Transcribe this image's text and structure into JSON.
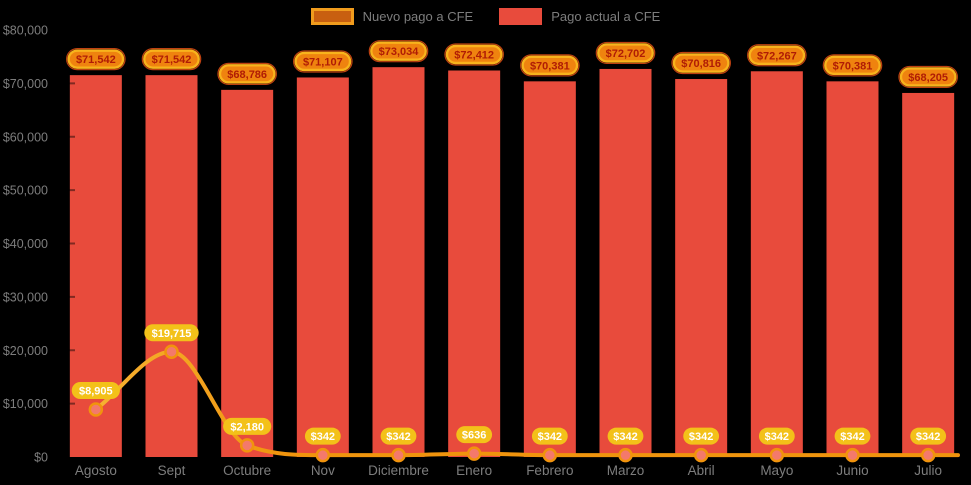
{
  "legend": {
    "items": [
      {
        "label": "Nuevo pago a CFE"
      },
      {
        "label": "Pago actual a CFE"
      }
    ]
  },
  "chart_data": {
    "type": "bar",
    "title": "",
    "xlabel": "",
    "ylabel": "",
    "categories": [
      "Agosto",
      "Sept",
      "Octubre",
      "Nov",
      "Diciembre",
      "Enero",
      "Febrero",
      "Marzo",
      "Abril",
      "Mayo",
      "Junio",
      "Julio"
    ],
    "series": [
      {
        "name": "Pago actual a CFE",
        "type": "bar",
        "values": [
          71542,
          71542,
          68786,
          71107,
          73034,
          72412,
          70381,
          72702,
          70816,
          72267,
          70381,
          68205
        ],
        "labels": [
          "$71,542",
          "$71,542",
          "$68,786",
          "$71,107",
          "$73,034",
          "$72,412",
          "$70,381",
          "$72,702",
          "$70,816",
          "$72,267",
          "$70,381",
          "$68,205"
        ]
      },
      {
        "name": "Nuevo pago a CFE",
        "type": "line",
        "values": [
          8905,
          19715,
          2180,
          342,
          342,
          636,
          342,
          342,
          342,
          342,
          342,
          342
        ],
        "labels": [
          "$8,905",
          "$19,715",
          "$2,180",
          "$342",
          "$342",
          "$636",
          "$342",
          "$342",
          "$342",
          "$342",
          "$342",
          "$342"
        ]
      }
    ],
    "y_ticks": {
      "values": [
        0,
        10000,
        20000,
        30000,
        40000,
        50000,
        60000,
        70000,
        80000
      ],
      "labels": [
        "$0",
        "$10,000",
        "$20,000",
        "$30,000",
        "$40,000",
        "$50,000",
        "$60,000",
        "$70,000",
        "$80,000"
      ]
    },
    "ylim": [
      0,
      80000
    ],
    "grid": false,
    "legend_position": "top"
  },
  "colors": {
    "background": "#000000",
    "bar": "#e84b3c",
    "line": "#f0940d",
    "line_gradient_start": "#f6b231",
    "marker_fill": "#f4796b",
    "marker_stroke": "#f1930d",
    "bar_badge_fill": "#ef830f",
    "bar_badge_border": "#f8b31c",
    "bar_badge_rim": "#bf4110",
    "bar_badge_text": "#b01c05",
    "line_badge_fill": "#f3c119",
    "line_badge_text": "#ffffff",
    "axis_text": "#7d7d7d",
    "tick": "rgba(0,0,0,0.45)",
    "legend_line_fill": "#c85f10",
    "legend_line_border": "#f09c1d"
  }
}
